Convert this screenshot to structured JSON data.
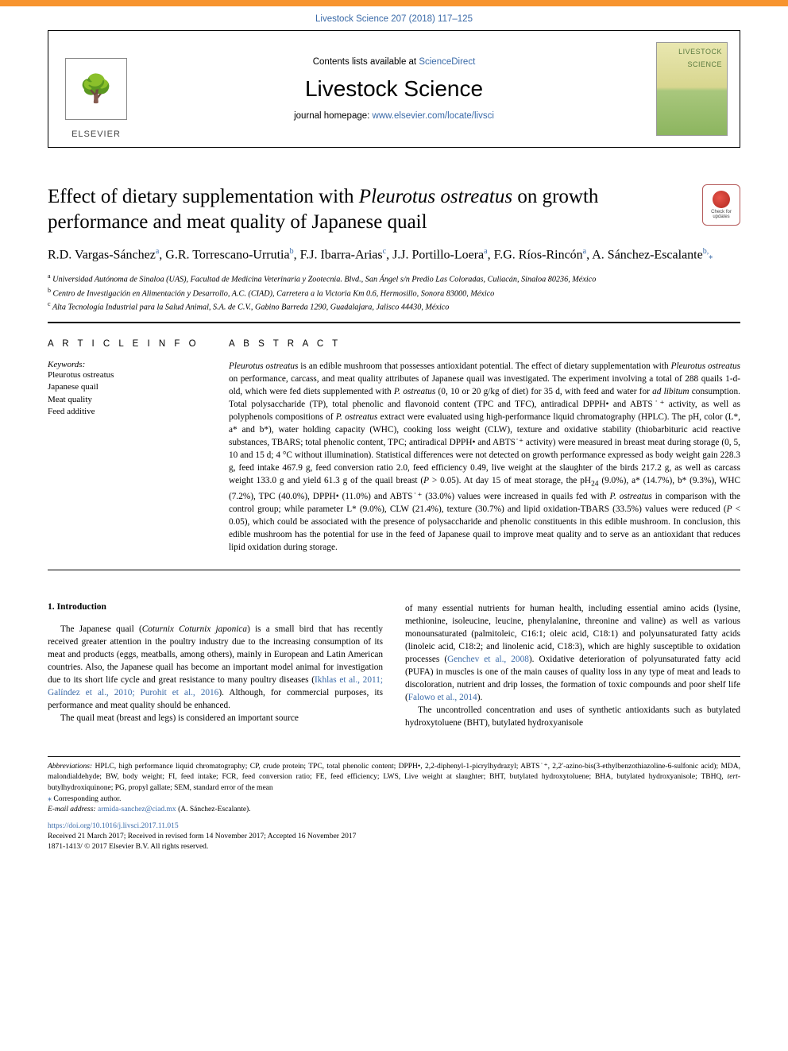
{
  "colors": {
    "topbar": "#f7942f",
    "link": "#3a6aa8",
    "text": "#000000",
    "cover_green": "#8cb55f",
    "cover_yellow": "#e9e7b0",
    "badge_red": "#e8554a"
  },
  "citation": "Livestock Science 207 (2018) 117–125",
  "masthead": {
    "publisher_label": "ELSEVIER",
    "contents_prefix": "Contents lists available at ",
    "contents_link": "ScienceDirect",
    "journal_title": "Livestock Science",
    "homepage_prefix": "journal homepage: ",
    "homepage_link": "www.elsevier.com/locate/livsci",
    "cover_label_top": "LIVESTOCK",
    "cover_label_bottom": "SCIENCE"
  },
  "check_updates": "Check for updates",
  "article_title_html": "Effect of dietary supplementation with <em>Pleurotus ostreatus</em> on growth performance and meat quality of Japanese quail",
  "authors_html": "R.D. Vargas-Sánchez<sup>a</sup>, G.R. Torrescano-Urrutia<sup>b</sup>, F.J. Ibarra-Arias<sup>c</sup>, J.J. Portillo-Loera<sup>a</sup>, F.G. Ríos-Rincón<sup>a</sup>, A. Sánchez-Escalante<sup>b,</sup><span class='star'>⁎</span>",
  "affiliations": [
    {
      "mark": "a",
      "text": "Universidad Autónoma de Sinaloa (UAS), Facultad de Medicina Veterinaria y Zootecnia. Blvd., San Ángel s/n Predio Las Coloradas, Culiacán, Sinaloa 80236, México"
    },
    {
      "mark": "b",
      "text": "Centro de Investigación en Alimentación y Desarrollo, A.C. (CIAD), Carretera a la Victoria Km 0.6, Hermosillo, Sonora 83000, México"
    },
    {
      "mark": "c",
      "text": "Alta Tecnología Industrial para la Salud Animal, S.A. de C.V., Gabino Barreda 1290, Guadalajara, Jalisco 44430, México"
    }
  ],
  "article_info_heading": "A R T I C L E  I N F O",
  "abstract_heading": "A B S T R A C T",
  "keywords_label": "Keywords:",
  "keywords": [
    "Pleurotus ostreatus",
    "Japanese quail",
    "Meat quality",
    "Feed additive"
  ],
  "abstract_html": "<em>Pleurotus ostreatus</em> is an edible mushroom that possesses antioxidant potential. The effect of dietary supplementation with <em>Pleurotus ostreatus</em> on performance, carcass, and meat quality attributes of Japanese quail was investigated. The experiment involving a total of 288 quails 1-d-old, which were fed diets supplemented with <em>P. ostreatus</em> (0, 10 or 20 g/kg of diet) for 35 d, with feed and water for <em>ad libitum</em> consumption. Total polysaccharide (TP), total phenolic and flavonoid content (TPC and TFC), antiradical DPPH• and ABTS˙⁺ activity, as well as polyphenols compositions of <em>P. ostreatus</em> extract were evaluated using high-performance liquid chromatography (HPLC). The pH, color (L*, a* and b*), water holding capacity (WHC), cooking loss weight (CLW), texture and oxidative stability (thiobarbituric acid reactive substances, TBARS; total phenolic content, TPC; antiradical DPPH• and ABTS˙⁺ activity) were measured in breast meat during storage (0, 5, 10 and 15 d; 4 °C without illumination). Statistical differences were not detected on growth performance expressed as body weight gain 228.3 g, feed intake 467.9 g, feed conversion ratio 2.0, feed efficiency 0.49, live weight at the slaughter of the birds 217.2 g, as well as carcass weight 133.0 g and yield 61.3 g of the quail breast (<em>P</em> > 0.05). At day 15 of meat storage, the pH<sub>24</sub> (9.0%), a* (14.7%), b* (9.3%), WHC (7.2%), TPC (40.0%), DPPH• (11.0%) and ABTS˙⁺ (33.0%) values were increased in quails fed with <em>P. ostreatus</em> in comparison with the control group; while parameter L* (9.0%), CLW (21.4%), texture (30.7%) and lipid oxidation-TBARS (33.5%) values were reduced (<em>P</em> < 0.05), which could be associated with the presence of polysaccharide and phenolic constituents in this edible mushroom. In conclusion, this edible mushroom has the potential for use in the feed of Japanese quail to improve meat quality and to serve as an antioxidant that reduces lipid oxidation during storage.",
  "intro_heading": "1. Introduction",
  "intro_col1_p1": "The Japanese quail (<em>Coturnix Coturnix japonica</em>) is a small bird that has recently received greater attention in the poultry industry due to the increasing consumption of its meat and products (eggs, meatballs, among others), mainly in European and Latin American countries. Also, the Japanese quail has become an important model animal for investigation due to its short life cycle and great resistance to many poultry diseases (<a>Ikhlas et al., 2011; Galíndez et al., 2010; Purohit et al., 2016</a>). Although, for commercial purposes, its performance and meat quality should be enhanced.",
  "intro_col1_p2": "The quail meat (breast and legs) is considered an important source",
  "intro_col2_p1": "of many essential nutrients for human health, including essential amino acids (lysine, methionine, isoleucine, leucine, phenylalanine, threonine and valine) as well as various monounsaturated (palmitoleic, C16:1; oleic acid, C18:1) and polyunsaturated fatty acids (linoleic acid, C18:2; and linolenic acid, C18:3), which are highly susceptible to oxidation processes (<a>Genchev et al., 2008</a>). Oxidative deterioration of polyunsaturated fatty acid (PUFA) in muscles is one of the main causes of quality loss in any type of meat and leads to discoloration, nutrient and drip losses, the formation of toxic compounds and poor shelf life (<a>Falowo et al., 2014</a>).",
  "intro_col2_p2": "The uncontrolled concentration and uses of synthetic antioxidants such as butylated hydroxytoluene (BHT), butylated hydroxyanisole",
  "footnotes": {
    "abbr_label": "Abbreviations:",
    "abbr_text": " HPLC, high performance liquid chromatography; CP, crude protein; TPC, total phenolic content; DPPH•, 2,2-diphenyl-1-picrylhydrazyl; ABTS˙⁺, 2,2′-azino-bis(3-ethylbenzothiazoline-6-sulfonic acid); MDA, malondialdehyde; BW, body weight; FI, feed intake; FCR, feed conversion ratio; FE, feed efficiency; LWS, Live weight at slaughter; BHT, butylated hydroxytoluene; BHA, butylated hydroxyanisole; TBHQ, <em>tert</em>-butylhydroxiquinone; PG, propyl gallate; SEM, standard error of the mean",
    "corr_label": "⁎ Corresponding author.",
    "email_label": "E-mail address: ",
    "email_link": "armida-sanchez@ciad.mx",
    "email_suffix": " (A. Sánchez-Escalante)."
  },
  "doi": {
    "link": "https://doi.org/10.1016/j.livsci.2017.11.015",
    "history": "Received 21 March 2017; Received in revised form 14 November 2017; Accepted 16 November 2017",
    "copyright": "1871-1413/ © 2017 Elsevier B.V. All rights reserved."
  }
}
